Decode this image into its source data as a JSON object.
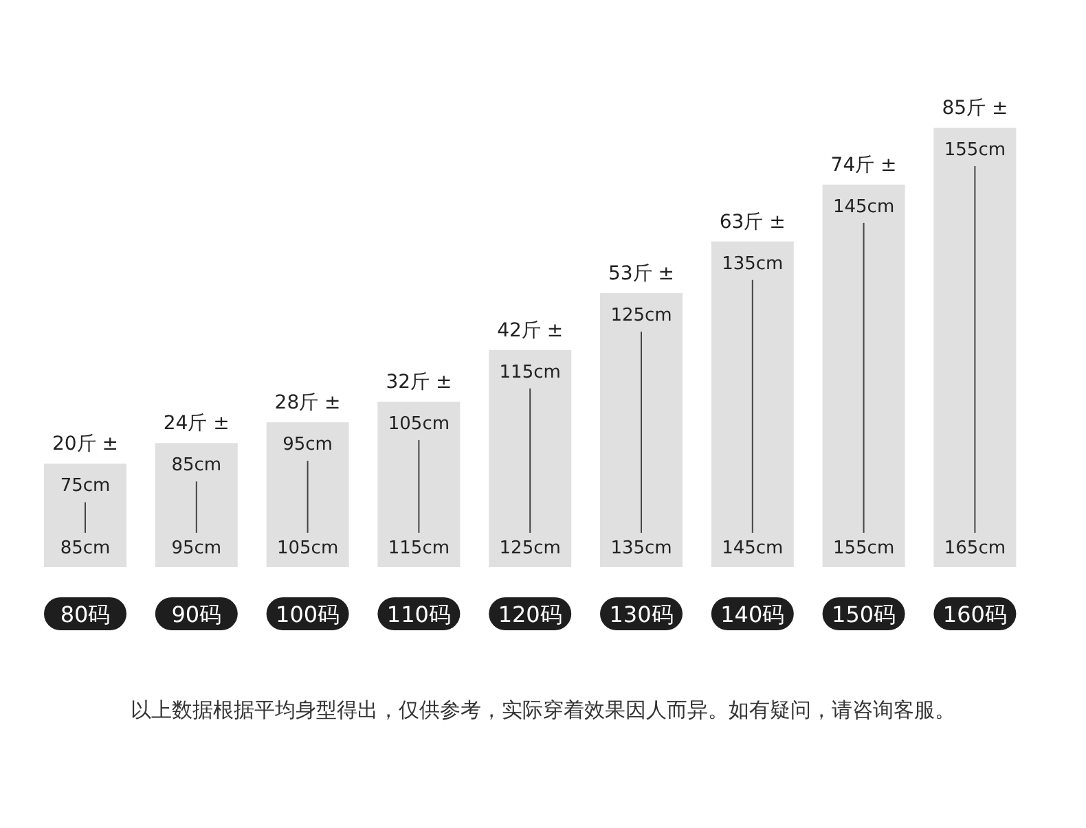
{
  "chart_data": {
    "type": "bar",
    "categories": [
      "80码",
      "90码",
      "100码",
      "110码",
      "120码",
      "130码",
      "140码",
      "150码",
      "160码"
    ],
    "values": [
      20,
      24,
      28,
      32,
      42,
      53,
      63,
      74,
      85
    ],
    "color": "#e0e0e0",
    "value_labels": [
      "20斤 ±",
      "24斤 ±",
      "28斤 ±",
      "32斤 ±",
      "42斤 ±",
      "53斤 ±",
      "63斤 ±",
      "74斤 ±",
      "85斤 ±"
    ],
    "annotations": [
      "75cm",
      "85cm",
      "85cm",
      "95cm",
      "95cm",
      "105cm",
      "105cm",
      "115cm",
      "115cm",
      "125cm",
      "125cm",
      "135cm",
      "135cm",
      "145cm",
      "145cm",
      "155cm",
      "155cm",
      "165cm",
      "以上数据根据平均身型得出，仅供参考，实际穿着效果因人而异。如有疑问，请咨询客服。"
    ]
  }
}
